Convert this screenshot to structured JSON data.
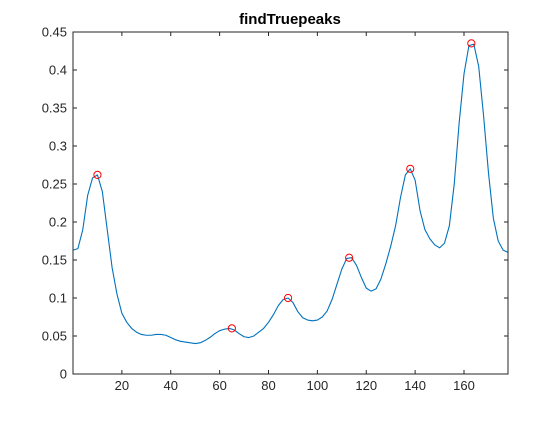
{
  "chart_data": {
    "type": "line",
    "title": "findTruepeaks",
    "xlabel": "",
    "ylabel": "",
    "xlim": [
      0,
      178
    ],
    "ylim": [
      0,
      0.45
    ],
    "xticks": [
      20,
      40,
      60,
      80,
      100,
      120,
      140,
      160
    ],
    "xtick_labels": [
      "20",
      "40",
      "60",
      "80",
      "100",
      "120",
      "140",
      "160"
    ],
    "yticks": [
      0,
      0.05,
      0.1,
      0.15,
      0.2,
      0.25,
      0.3,
      0.35,
      0.4,
      0.45
    ],
    "ytick_labels": [
      "0",
      "0.05",
      "0.1",
      "0.15",
      "0.2",
      "0.25",
      "0.3",
      "0.35",
      "0.4",
      "0.45"
    ],
    "grid": false,
    "legend": "none",
    "series": [
      {
        "color": "#0072BD",
        "x": [
          0,
          2,
          4,
          6,
          8,
          10,
          12,
          14,
          16,
          18,
          20,
          22,
          24,
          26,
          28,
          30,
          32,
          34,
          36,
          38,
          40,
          42,
          44,
          46,
          48,
          50,
          52,
          54,
          56,
          58,
          60,
          62,
          64,
          66,
          68,
          70,
          72,
          74,
          76,
          78,
          80,
          82,
          84,
          86,
          88,
          90,
          92,
          94,
          96,
          98,
          100,
          102,
          104,
          106,
          108,
          110,
          112,
          114,
          116,
          118,
          120,
          122,
          124,
          126,
          128,
          130,
          132,
          134,
          136,
          138,
          140,
          142,
          144,
          146,
          148,
          150,
          152,
          154,
          156,
          158,
          160,
          162,
          164,
          166,
          168,
          170,
          172,
          174,
          176,
          178
        ],
        "values": [
          0.163,
          0.165,
          0.19,
          0.235,
          0.258,
          0.262,
          0.24,
          0.19,
          0.14,
          0.105,
          0.08,
          0.068,
          0.06,
          0.055,
          0.052,
          0.051,
          0.051,
          0.052,
          0.052,
          0.051,
          0.048,
          0.045,
          0.043,
          0.042,
          0.041,
          0.04,
          0.041,
          0.044,
          0.048,
          0.053,
          0.057,
          0.059,
          0.06,
          0.058,
          0.053,
          0.049,
          0.048,
          0.05,
          0.055,
          0.06,
          0.068,
          0.078,
          0.09,
          0.098,
          0.1,
          0.094,
          0.082,
          0.074,
          0.071,
          0.07,
          0.071,
          0.075,
          0.083,
          0.098,
          0.118,
          0.138,
          0.152,
          0.153,
          0.143,
          0.127,
          0.113,
          0.109,
          0.112,
          0.125,
          0.145,
          0.168,
          0.195,
          0.232,
          0.262,
          0.27,
          0.255,
          0.215,
          0.19,
          0.178,
          0.17,
          0.166,
          0.172,
          0.195,
          0.25,
          0.33,
          0.395,
          0.432,
          0.434,
          0.405,
          0.34,
          0.265,
          0.205,
          0.175,
          0.163,
          0.16
        ]
      }
    ],
    "peaks": {
      "color": "#FF0000",
      "marker": "circle",
      "x": [
        10,
        65,
        88,
        113,
        138,
        163
      ],
      "values": [
        0.262,
        0.06,
        0.1,
        0.153,
        0.27,
        0.435
      ]
    }
  }
}
